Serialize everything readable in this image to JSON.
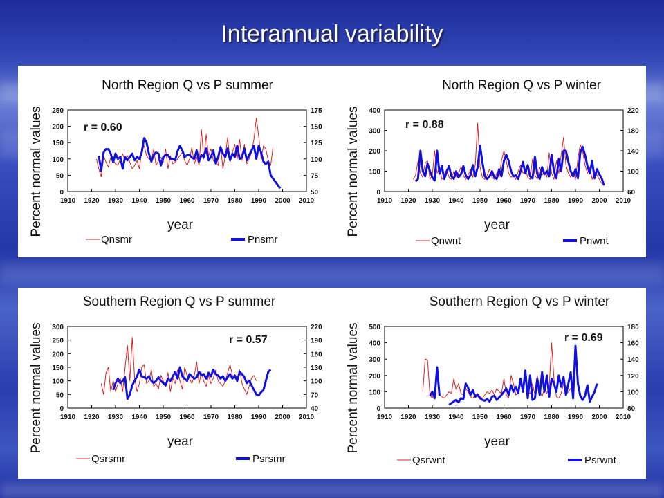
{
  "slide_title": "Interannual variability",
  "colors": {
    "q_series": "#e02020",
    "p_series": "#1010e0"
  },
  "chart_data": [
    {
      "type": "line",
      "title": "North Region Q vs P summer",
      "xlabel": "year",
      "ylabel": "Percent normal values",
      "xlim": [
        1910,
        2010
      ],
      "xticks": [
        1910,
        1920,
        1930,
        1940,
        1950,
        1960,
        1970,
        1980,
        1990,
        2000,
        2010
      ],
      "ylim_left": [
        0,
        250
      ],
      "yticks_left": [
        0,
        50,
        100,
        150,
        200,
        250
      ],
      "ylim_right": [
        50,
        175
      ],
      "yticks_right": [
        50,
        75,
        100,
        125,
        150,
        175
      ],
      "r_label": "r = 0.60",
      "series": [
        {
          "name": "Qnsmr",
          "axis": "left",
          "x0": 1922,
          "values": [
            100,
            70,
            45,
            110,
            90,
            75,
            105,
            95,
            85,
            80,
            100,
            115,
            95,
            110,
            90,
            70,
            80,
            95,
            70,
            125,
            140,
            110,
            100,
            95,
            130,
            80,
            95,
            105,
            90,
            130,
            70,
            110,
            85,
            90,
            100,
            110,
            120,
            95,
            80,
            100,
            135,
            85,
            105,
            80,
            190,
            100,
            175,
            110,
            130,
            95,
            90,
            80,
            140,
            70,
            110,
            165,
            90,
            120,
            145,
            100,
            160,
            95,
            145,
            85,
            100,
            120,
            160,
            225,
            170,
            100,
            140,
            130,
            95,
            80,
            135
          ]
        },
        {
          "name": "Pnsmr",
          "axis": "right",
          "x0": 1923,
          "values": [
            105,
            82,
            110,
            115,
            115,
            108,
            95,
            108,
            100,
            103,
            85,
            103,
            98,
            103,
            108,
            98,
            103,
            100,
            110,
            132,
            125,
            108,
            96,
            106,
            110,
            108,
            90,
            103,
            106,
            106,
            100,
            100,
            98,
            112,
            120,
            113,
            103,
            106,
            106,
            102,
            100,
            113,
            96,
            106,
            103,
            116,
            98,
            103,
            113,
            93,
            103,
            118,
            108,
            103,
            116,
            98,
            108,
            103,
            120,
            100,
            103,
            116,
            98,
            106,
            113,
            120,
            100,
            120,
            110,
            96,
            92,
            96,
            75,
            70,
            65,
            60,
            55
          ]
        }
      ]
    },
    {
      "type": "line",
      "title": "North Region Q vs P winter",
      "xlabel": "year",
      "ylabel": "Percent normal values",
      "xlim": [
        1910,
        2010
      ],
      "xticks": [
        1910,
        1920,
        1930,
        1940,
        1950,
        1960,
        1970,
        1980,
        1990,
        2000,
        2010
      ],
      "ylim_left": [
        0,
        400
      ],
      "yticks_left": [
        0,
        100,
        200,
        300,
        400
      ],
      "ylim_right": [
        60,
        220
      ],
      "yticks_right": [
        60,
        100,
        140,
        180,
        220
      ],
      "r_label": "r = 0.88",
      "series": [
        {
          "name": "Qnwnt",
          "axis": "left",
          "x0": 1922,
          "values": [
            60,
            80,
            150,
            90,
            70,
            140,
            150,
            60,
            80,
            200,
            90,
            120,
            60,
            80,
            110,
            70,
            60,
            100,
            70,
            90,
            120,
            80,
            60,
            80,
            110,
            70,
            130,
            335,
            120,
            70,
            60,
            80,
            110,
            70,
            60,
            90,
            70,
            150,
            200,
            150,
            90,
            70,
            80,
            60,
            100,
            130,
            90,
            110,
            70,
            60,
            160,
            80,
            60,
            120,
            80,
            100,
            70,
            190,
            90,
            60,
            150,
            90,
            180,
            265,
            130,
            90,
            70,
            100,
            60,
            160,
            230,
            200,
            130,
            90,
            120,
            60,
            100,
            80,
            60,
            40
          ]
        },
        {
          "name": "Pnwnt",
          "axis": "right",
          "x0": 1923,
          "values": [
            80,
            85,
            140,
            100,
            90,
            115,
            100,
            88,
            82,
            140,
            95,
            110,
            85,
            98,
            110,
            90,
            85,
            100,
            88,
            94,
            110,
            92,
            85,
            92,
            112,
            90,
            108,
            150,
            118,
            90,
            85,
            90,
            100,
            88,
            85,
            104,
            90,
            120,
            132,
            120,
            100,
            90,
            92,
            85,
            100,
            118,
            96,
            112,
            90,
            86,
            128,
            94,
            85,
            108,
            94,
            100,
            90,
            132,
            100,
            86,
            124,
            100,
            140,
            140,
            118,
            100,
            90,
            104,
            86,
            136,
            148,
            132,
            110,
            96,
            120,
            86,
            104,
            94,
            86,
            72
          ]
        }
      ]
    },
    {
      "type": "line",
      "title": "Southern Region Q vs P summer",
      "xlabel": "year",
      "ylabel": "Percent normal values",
      "xlim": [
        1910,
        2010
      ],
      "xticks": [
        1910,
        1920,
        1930,
        1940,
        1950,
        1960,
        1970,
        1980,
        1990,
        2000,
        2010
      ],
      "ylim_left": [
        0,
        300
      ],
      "yticks_left": [
        0,
        50,
        100,
        150,
        200,
        250,
        300
      ],
      "ylim_right": [
        40,
        220
      ],
      "yticks_right": [
        40,
        70,
        100,
        130,
        160,
        190,
        220
      ],
      "r_label": "r = 0.57",
      "series": [
        {
          "name": "Qsrsmr",
          "axis": "left",
          "x0": 1924,
          "values": [
            90,
            50,
            130,
            150,
            60,
            100,
            60,
            90,
            110,
            60,
            150,
            230,
            100,
            260,
            110,
            60,
            90,
            150,
            160,
            90,
            100,
            140,
            80,
            90,
            70,
            120,
            100,
            80,
            130,
            60,
            110,
            90,
            140,
            100,
            70,
            150,
            120,
            110,
            90,
            120,
            170,
            90,
            130,
            100,
            80,
            120,
            90,
            110,
            140,
            100,
            90,
            80,
            100,
            130,
            160,
            120,
            110,
            100,
            140,
            90,
            70,
            50,
            80,
            110,
            120,
            100
          ]
        },
        {
          "name": "Psrsmr",
          "axis": "right",
          "x0": 1929,
          "values": [
            80,
            95,
            105,
            95,
            100,
            108,
            60,
            70,
            90,
            100,
            110,
            125,
            110,
            108,
            105,
            110,
            100,
            95,
            100,
            108,
            100,
            95,
            90,
            105,
            100,
            110,
            120,
            105,
            130,
            110,
            105,
            100,
            115,
            110,
            105,
            108,
            120,
            112,
            115,
            105,
            118,
            110,
            125,
            115,
            112,
            105,
            110,
            100,
            108,
            115,
            105,
            112,
            100,
            120,
            115,
            108,
            95,
            100,
            90,
            80,
            70,
            68,
            75,
            80,
            100,
            120,
            125
          ]
        }
      ]
    },
    {
      "type": "line",
      "title": "Southern Region Q vs P winter",
      "xlabel": "year",
      "ylabel": "Percent normal values",
      "xlim": [
        1910,
        2010
      ],
      "xticks": [
        1910,
        1920,
        1930,
        1940,
        1950,
        1960,
        1970,
        1980,
        1990,
        2000,
        2010
      ],
      "ylim_left": [
        0,
        500
      ],
      "yticks_left": [
        0,
        100,
        200,
        300,
        400,
        500
      ],
      "ylim_right": [
        80,
        180
      ],
      "yticks_right": [
        80,
        100,
        120,
        140,
        160,
        180
      ],
      "r_label": "r = 0.69",
      "series": [
        {
          "name": "Qsrwnt",
          "axis": "left",
          "x0": 1926,
          "values": [
            100,
            300,
            295,
            80,
            60,
            100,
            250,
            80,
            70,
            60,
            80,
            100,
            90,
            180,
            110,
            150,
            90,
            80,
            120,
            100,
            70,
            60,
            80,
            90,
            70,
            60,
            80,
            100,
            90,
            110,
            80,
            120,
            100,
            90,
            180,
            80,
            60,
            200,
            150,
            80,
            90,
            160,
            120,
            170,
            100,
            90,
            150,
            80,
            200,
            110,
            70,
            120,
            90,
            130,
            400,
            180,
            70,
            60,
            90,
            150,
            80,
            100,
            120,
            140
          ]
        },
        {
          "name": "Psrwnt",
          "axis": "right",
          "x0": 1929,
          "values": [
            95,
            100,
            92,
            130,
            95,
            null,
            null,
            null,
            84,
            86,
            88,
            90,
            87,
            92,
            91,
            110,
            105,
            96,
            102,
            94,
            96,
            92,
            90,
            89,
            91,
            88,
            94,
            95,
            90,
            93,
            96,
            100,
            104,
            96,
            108,
            100,
            106,
            98,
            116,
            100,
            126,
            92,
            120,
            90,
            92,
            116,
            96,
            124,
            100,
            120,
            94,
            116,
            110,
            100,
            120,
            106,
            118,
            96,
            110,
            124,
            92,
            156,
            110,
            95,
            90,
            95,
            108,
            88,
            94,
            100,
            110
          ]
        }
      ]
    }
  ],
  "legends": [
    {
      "q": "Qnsmr",
      "p": "Pnsmr"
    },
    {
      "q": "Qnwnt",
      "p": "Pnwnt"
    },
    {
      "q": "Qsrsmr",
      "p": "Psrsmr"
    },
    {
      "q": "Qsrwnt",
      "p": "Psrwnt"
    }
  ]
}
